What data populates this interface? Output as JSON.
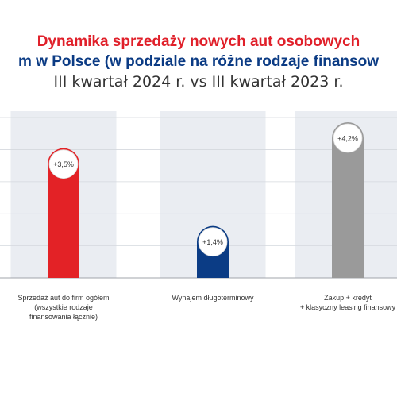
{
  "title": {
    "line1": "Dynamika sprzedaży nowych aut osobowych",
    "line2": "m w Polsce (w podziale na różne rodzaje finansow",
    "line3": "III kwartał 2024 r. vs III kwartał 2023 r."
  },
  "chart_data": {
    "type": "bar",
    "title": "Dynamika sprzedaży nowych aut osobowych m w Polsce (w podziale na różne rodzaje finansow III kwartał 2024 r. vs III kwartał 2023 r.",
    "categories": [
      "Sprzedaż aut do firm ogółem (wszystkie rodzaje finansowania łącznie)",
      "Wynajem długoterminowy",
      "Zakup + kredyt + klasyczny leasing finansowy"
    ],
    "category_lines": [
      [
        "Sprzedaż aut do firm ogółem",
        "(wszystkie rodzaje",
        "finansowania łącznie)"
      ],
      [
        "Wynajem długoterminowy"
      ],
      [
        "Zakup + kredyt",
        "+ klasyczny leasing finansowy"
      ]
    ],
    "values": [
      3.5,
      1.4,
      4.2
    ],
    "value_labels": [
      "+3,5%",
      "+1,4%",
      "+4,2%"
    ],
    "colors": [
      "#e32226",
      "#0b3c85",
      "#9a9a9a"
    ],
    "ylim": [
      0,
      4.5
    ],
    "xlabel": "",
    "ylabel": "",
    "grid": true
  }
}
